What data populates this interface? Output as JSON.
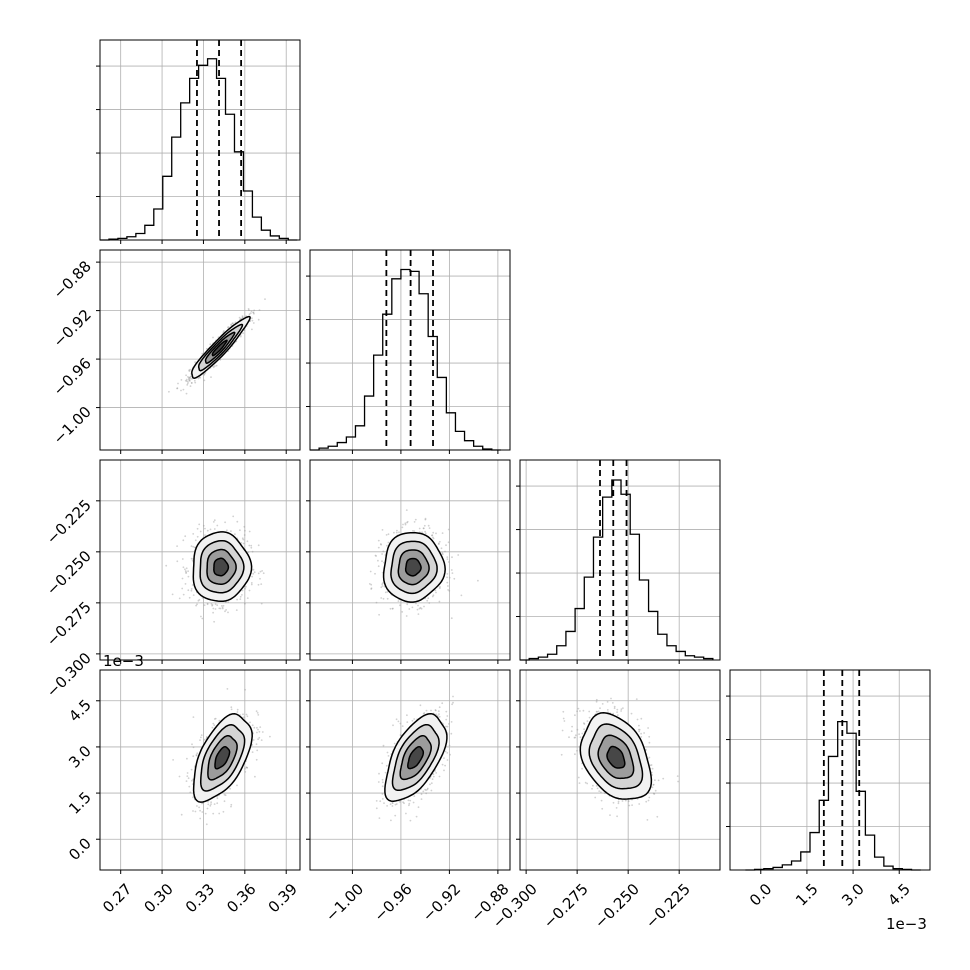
{
  "chart_data": {
    "type": "corner",
    "title": "",
    "variables": [
      {
        "index": 0,
        "range": [
          0.255,
          0.4
        ],
        "ticks": [
          0.27,
          0.3,
          0.33,
          0.36,
          0.39
        ],
        "tick_labels": [
          "0.27",
          "0.30",
          "0.33",
          "0.36",
          "0.39"
        ],
        "offset_text": ""
      },
      {
        "index": 1,
        "range": [
          -1.035,
          -0.87
        ],
        "ticks": [
          -1.0,
          -0.96,
          -0.92,
          -0.88
        ],
        "tick_labels": [
          "−1.00",
          "−0.96",
          "−0.92",
          "−0.88"
        ],
        "offset_text": ""
      },
      {
        "index": 2,
        "range": [
          -0.303,
          -0.205
        ],
        "ticks": [
          -0.3,
          -0.275,
          -0.25,
          -0.225
        ],
        "tick_labels": [
          "−0.300",
          "−0.275",
          "−0.250",
          "−0.225"
        ],
        "offset_text": ""
      },
      {
        "index": 3,
        "range": [
          -1.0,
          5.5
        ],
        "ticks": [
          0.0,
          1.5,
          3.0,
          4.5
        ],
        "tick_labels": [
          "0.0",
          "1.5",
          "3.0",
          "4.5"
        ],
        "offset_text": "1e−3"
      }
    ],
    "quantiles": [
      [
        0.3253,
        0.3413,
        0.3573
      ],
      [
        -0.972,
        -0.952,
        -0.9335
      ],
      [
        -0.2638,
        -0.2573,
        -0.2508
      ],
      [
        2.05,
        2.65,
        3.2
      ]
    ],
    "histograms": [
      {
        "variable": 0,
        "bins": [
          0.255,
          0.2615,
          0.268,
          0.2745,
          0.281,
          0.2875,
          0.294,
          0.3005,
          0.307,
          0.3135,
          0.32,
          0.3265,
          0.333,
          0.3395,
          0.346,
          0.3525,
          0.359,
          0.3655,
          0.372,
          0.3785,
          0.385,
          0.3915,
          0.398
        ],
        "counts": [
          0,
          1,
          2,
          4,
          8,
          18,
          38,
          78,
          126,
          168,
          198,
          214,
          222,
          198,
          154,
          108,
          60,
          28,
          12,
          5,
          2,
          0
        ],
        "ylim": [
          0,
          245
        ]
      },
      {
        "variable": 1,
        "bins": [
          -1.035,
          -1.0275,
          -1.02,
          -1.0125,
          -1.005,
          -0.9975,
          -0.99,
          -0.9825,
          -0.975,
          -0.9675,
          -0.96,
          -0.9525,
          -0.945,
          -0.9375,
          -0.93,
          -0.9225,
          -0.915,
          -0.9075,
          -0.9,
          -0.8925,
          -0.885,
          -0.8775
        ],
        "counts": [
          0,
          2,
          4,
          8,
          14,
          26,
          58,
          102,
          146,
          184,
          194,
          192,
          168,
          122,
          78,
          40,
          20,
          10,
          4,
          1,
          0
        ],
        "ylim": [
          0,
          215
        ]
      },
      {
        "variable": 2,
        "bins": [
          -0.303,
          -0.2985,
          -0.294,
          -0.2895,
          -0.285,
          -0.2805,
          -0.276,
          -0.2715,
          -0.267,
          -0.2625,
          -0.258,
          -0.2535,
          -0.249,
          -0.2445,
          -0.24,
          -0.2355,
          -0.231,
          -0.2265,
          -0.222,
          -0.2175,
          -0.213,
          -0.2085
        ],
        "counts": [
          0,
          1,
          2,
          4,
          10,
          20,
          36,
          58,
          86,
          114,
          126,
          116,
          88,
          56,
          34,
          18,
          10,
          6,
          3,
          2,
          1
        ],
        "ylim": [
          0,
          140
        ]
      },
      {
        "variable": 3,
        "bins": [
          -0.5,
          -0.2,
          0.1,
          0.4,
          0.7,
          1.0,
          1.3,
          1.6,
          1.9,
          2.2,
          2.5,
          2.8,
          3.1,
          3.4,
          3.7,
          4.0,
          4.3,
          4.6,
          4.9,
          5.2
        ],
        "counts": [
          0,
          1,
          2,
          4,
          8,
          14,
          28,
          58,
          108,
          176,
          230,
          212,
          122,
          54,
          20,
          6,
          2,
          1,
          0
        ],
        "ylim": [
          0,
          310
        ]
      }
    ],
    "pairs": [
      {
        "x": 0,
        "y": 1,
        "center": [
          0.3415,
          -0.951
        ],
        "sd": [
          0.0105,
          0.0125
        ],
        "correlation": 0.94
      },
      {
        "x": 0,
        "y": 2,
        "center": [
          0.3425,
          -0.2575
        ],
        "sd": [
          0.0105,
          0.0085
        ],
        "correlation": 0.02
      },
      {
        "x": 0,
        "y": 3,
        "center": [
          0.3435,
          2.65
        ],
        "sd": [
          0.0105,
          0.7
        ],
        "correlation": 0.55
      },
      {
        "x": 1,
        "y": 2,
        "center": [
          -0.95,
          -0.2575
        ],
        "sd": [
          0.0125,
          0.0085
        ],
        "correlation": 0.03
      },
      {
        "x": 1,
        "y": 3,
        "center": [
          -0.948,
          2.65
        ],
        "sd": [
          0.0125,
          0.7
        ],
        "correlation": 0.57
      },
      {
        "x": 2,
        "y": 3,
        "center": [
          -0.256,
          2.65
        ],
        "sd": [
          0.0085,
          0.7
        ],
        "correlation": -0.33
      }
    ],
    "contour_levels_sigma": [
      0.5,
      1.0,
      1.5,
      2.0
    ],
    "grid": true,
    "colors": {
      "line": "#000000",
      "grid": "#b0b0b0",
      "points": "#9a9a9a",
      "background": "#ffffff"
    }
  }
}
